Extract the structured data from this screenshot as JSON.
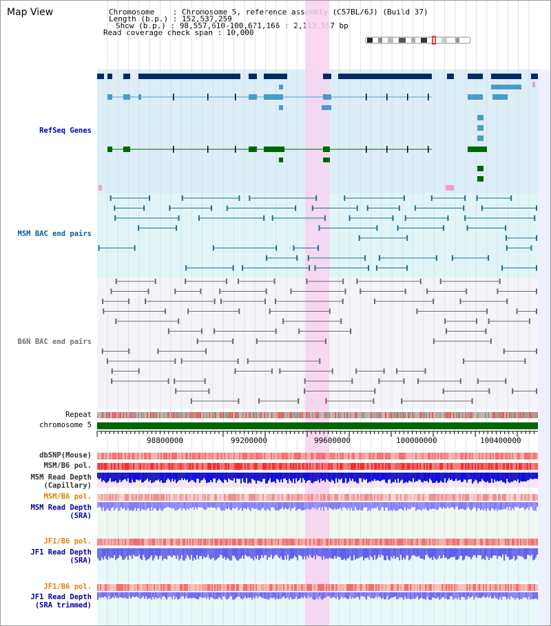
{
  "title": "Map View",
  "info": {
    "chromosome": "Chromosome    : Chromosome 5, reference assembly (C57BL/6J) (Build 37)",
    "length": "Length (b.p.) : 152,537,259",
    "show": "Show (b.p.) : 98,557,610-100,671,166 : 2,113,557 bp",
    "coverage": "Read coverage check span : 10,000"
  },
  "tracks": {
    "refseq": "RefSeq Genes",
    "msm_bac": "MSM BAC end pairs",
    "b6n_bac": "B6N BAC end pairs",
    "repeat": "Repeat",
    "chromosome": "chromosome 5",
    "dbsnp": "dbSNP(Mouse)",
    "msm_pol1": "MSM/B6 pol.",
    "msm_depth_cap_1": "MSM Read Depth",
    "msm_depth_cap_2": "(Capillary)",
    "msm_pol2": "MSM/B6 pol.",
    "msm_depth_sra_1": "MSM Read Depth",
    "msm_depth_sra_2": "(SRA)",
    "jf1_pol1": "JF1/B6 pol.",
    "jf1_depth_sra_1": "JF1 Read Depth",
    "jf1_depth_sra_2": "(SRA)",
    "jf1_pol2": "JF1/B6 pol.",
    "jf1_depth_tr_1": "JF1 Read Depth",
    "jf1_depth_tr_2": "(SRA trimmed)"
  },
  "axis": {
    "ticks": [
      "98800000",
      "99200000",
      "99600000",
      "100000000",
      "100400000"
    ]
  },
  "colors": {
    "refseq_bg": "#dceef8",
    "msm_bg": "#e0f6f6",
    "b6n_bg": "#f4f4f8",
    "highlight": "#f8d2f0",
    "refseq_label": "#0000c0",
    "msm_label": "#0060a0",
    "b6n_label": "#707070",
    "pol_orange": "#e08000",
    "depth_blue": "#0000a0"
  }
}
